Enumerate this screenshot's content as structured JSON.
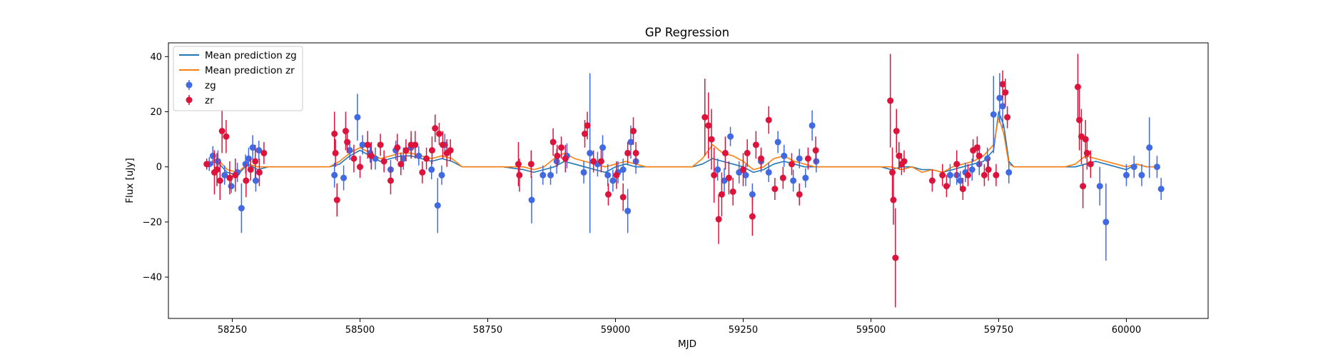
{
  "chart_data": {
    "type": "scatter",
    "title": "GP Regression",
    "xlabel": "MJD",
    "ylabel": "Flux [uJy]",
    "xlim": [
      58125,
      60160
    ],
    "ylim": [
      -55,
      45
    ],
    "xticks": [
      58250,
      58500,
      58750,
      59000,
      59250,
      59500,
      59750,
      60000
    ],
    "yticks": [
      -40,
      -20,
      0,
      20,
      40
    ],
    "grid": false,
    "legend_position": "top-left",
    "colors": {
      "zg_points": "#4169e1",
      "zr_points": "#dc143c",
      "zg_line": "#1f77b4",
      "zr_line": "#ff7f0e"
    },
    "legend": [
      {
        "label": "Mean prediction zg",
        "kind": "line",
        "color": "#1f77b4"
      },
      {
        "label": "Mean prediction zr",
        "kind": "line",
        "color": "#ff7f0e"
      },
      {
        "label": "zg",
        "kind": "errorbar",
        "color": "#4169e1"
      },
      {
        "label": "zr",
        "kind": "errorbar",
        "color": "#dc143c"
      }
    ],
    "series": [
      {
        "name": "Mean prediction zg",
        "kind": "line",
        "color": "#1f77b4",
        "x": [
          58200,
          58220,
          58240,
          58260,
          58280,
          58300,
          58320,
          58400,
          58440,
          58460,
          58480,
          58500,
          58520,
          58540,
          58560,
          58580,
          58600,
          58620,
          58640,
          58660,
          58680,
          58700,
          58780,
          58820,
          58840,
          58860,
          58880,
          58900,
          58920,
          58940,
          58960,
          58980,
          59000,
          59020,
          59040,
          59060,
          59150,
          59170,
          59190,
          59210,
          59230,
          59250,
          59270,
          59290,
          59310,
          59330,
          59350,
          59370,
          59390,
          59410,
          59500,
          59520,
          59540,
          59560,
          59580,
          59600,
          59620,
          59640,
          59660,
          59680,
          59700,
          59720,
          59740,
          59750,
          59760,
          59770,
          59780,
          59800,
          59880,
          59900,
          59920,
          59940,
          59960,
          59980,
          60000,
          60020,
          60040,
          60060
        ],
        "y": [
          1,
          2,
          -2,
          -3,
          1,
          -1,
          0,
          0,
          0,
          1,
          4,
          6,
          4,
          2,
          3,
          4,
          4,
          3,
          2,
          3,
          2,
          0,
          0,
          -1,
          -2,
          -1,
          0,
          2,
          1,
          0,
          -1,
          -2,
          0,
          1,
          0,
          0,
          0,
          1,
          3,
          2,
          1,
          0,
          -2,
          -1,
          1,
          2,
          1,
          0,
          0,
          0,
          0,
          0,
          -1,
          0,
          0,
          -1,
          -1,
          -2,
          -1,
          0,
          1,
          2,
          6,
          20,
          15,
          2,
          0,
          0,
          0,
          0,
          1,
          2,
          1,
          0,
          -1,
          1,
          0,
          0
        ]
      },
      {
        "name": "Mean prediction zr",
        "kind": "line",
        "color": "#ff7f0e",
        "x": [
          58200,
          58220,
          58240,
          58260,
          58280,
          58300,
          58320,
          58400,
          58440,
          58460,
          58480,
          58500,
          58520,
          58540,
          58560,
          58580,
          58600,
          58620,
          58640,
          58660,
          58680,
          58700,
          58780,
          58820,
          58840,
          58860,
          58880,
          58900,
          58920,
          58940,
          58960,
          58980,
          59000,
          59020,
          59040,
          59060,
          59150,
          59170,
          59190,
          59210,
          59230,
          59250,
          59270,
          59290,
          59310,
          59330,
          59350,
          59370,
          59390,
          59410,
          59500,
          59520,
          59540,
          59560,
          59580,
          59600,
          59620,
          59640,
          59660,
          59680,
          59700,
          59720,
          59740,
          59750,
          59760,
          59770,
          59780,
          59800,
          59880,
          59900,
          59920,
          59940,
          59960,
          59980,
          60000,
          60020,
          60040,
          60060
        ],
        "y": [
          1,
          3,
          -1,
          -2,
          1,
          0,
          0,
          0,
          0,
          2,
          5,
          7,
          5,
          3,
          4,
          5,
          5,
          4,
          3,
          4,
          3,
          0,
          0,
          0,
          -1,
          0,
          3,
          5,
          3,
          2,
          1,
          0,
          1,
          2,
          1,
          0,
          0,
          3,
          8,
          5,
          4,
          2,
          -1,
          0,
          3,
          4,
          2,
          1,
          0,
          0,
          0,
          0,
          0,
          -1,
          0,
          -2,
          -1,
          -2,
          0,
          1,
          2,
          4,
          8,
          18,
          12,
          1,
          0,
          0,
          0,
          1,
          4,
          3,
          2,
          1,
          0,
          1,
          0,
          0
        ]
      },
      {
        "name": "zg",
        "kind": "errorbar",
        "color": "#4169e1",
        "x": [
          58205,
          58212,
          58222,
          58235,
          58248,
          58260,
          58268,
          58276,
          58282,
          58290,
          58296,
          58302,
          58450,
          58468,
          58480,
          58495,
          58505,
          58520,
          58530,
          58560,
          58570,
          58585,
          58600,
          58615,
          58640,
          58652,
          58660,
          58666,
          58836,
          58858,
          58873,
          58885,
          58905,
          58938,
          58950,
          58965,
          58975,
          58985,
          58995,
          59005,
          59015,
          59024,
          59030,
          59040,
          59200,
          59213,
          59225,
          59242,
          59255,
          59268,
          59285,
          59300,
          59318,
          59330,
          59348,
          59360,
          59372,
          59385,
          59393,
          59655,
          59668,
          59675,
          59685,
          59698,
          59712,
          59728,
          59740,
          59752,
          59758,
          59770,
          59948,
          59960,
          60000,
          60015,
          60030,
          60045,
          60060,
          60068
        ],
        "y": [
          1,
          4,
          2,
          -3,
          -7,
          -2,
          -15,
          1,
          3,
          7,
          -5,
          6,
          -3,
          -4,
          6,
          18,
          8,
          5,
          3,
          -1,
          6,
          3,
          7,
          4,
          -1,
          -14,
          -3,
          8,
          -12,
          -3,
          -3,
          2,
          4,
          -2,
          5,
          1,
          7,
          -3,
          -5,
          -2,
          -1,
          -16,
          9,
          2,
          -1,
          -5,
          11,
          -2,
          -3,
          -10,
          2,
          -2,
          9,
          4,
          -5,
          3,
          -4,
          15,
          2,
          -3,
          -3,
          -5,
          -2,
          -1,
          1,
          3,
          19,
          25,
          22,
          -2,
          -7,
          -20,
          -3,
          0,
          -3,
          7,
          0,
          -8
        ],
        "err": [
          2.5,
          3.5,
          4,
          3.5,
          2.5,
          3.5,
          9,
          3.5,
          4,
          4.5,
          4,
          3.5,
          4.5,
          4.5,
          3.5,
          8.5,
          3.5,
          3.5,
          4,
          3.5,
          3.5,
          4,
          3.5,
          3.5,
          3.5,
          10,
          3.5,
          4,
          8.5,
          3.5,
          3.5,
          4.5,
          4.5,
          4,
          29,
          4.5,
          4.5,
          4,
          4,
          4,
          4,
          8,
          6,
          4.5,
          4,
          4.5,
          3.5,
          4,
          4,
          4,
          4,
          3.5,
          4,
          4,
          4,
          3.5,
          3.5,
          5.5,
          4,
          4,
          3.5,
          3.5,
          3.5,
          4,
          4,
          4,
          14,
          9,
          8,
          4,
          7,
          14,
          4,
          4,
          4,
          11,
          4,
          4
        ]
      },
      {
        "name": "zr",
        "kind": "errorbar",
        "color": "#dc143c",
        "x": [
          58200,
          58215,
          58220,
          58226,
          58230,
          58238,
          58245,
          58256,
          58277,
          58286,
          58295,
          58303,
          58312,
          58450,
          58452,
          58455,
          58472,
          58475,
          58488,
          58500,
          58515,
          58522,
          58540,
          58547,
          58560,
          58573,
          58580,
          58590,
          58600,
          58608,
          58622,
          58630,
          58641,
          58647,
          58655,
          58662,
          58670,
          58677,
          58810,
          58812,
          58835,
          58878,
          58886,
          58894,
          58902,
          58940,
          58945,
          58957,
          58972,
          58986,
          59002,
          59015,
          59024,
          59035,
          59040,
          59175,
          59182,
          59188,
          59193,
          59202,
          59208,
          59215,
          59222,
          59230,
          59250,
          59258,
          59268,
          59275,
          59285,
          59300,
          59312,
          59328,
          59345,
          59360,
          59377,
          59392,
          59538,
          59542,
          59544,
          59548,
          59550,
          59555,
          59560,
          59565,
          59620,
          59640,
          59648,
          59668,
          59680,
          59690,
          59700,
          59708,
          59712,
          59722,
          59730,
          59745,
          59758,
          59763,
          59767,
          59905,
          59908,
          59912,
          59915,
          59920,
          59923,
          59930
        ],
        "y": [
          1,
          -2,
          -1,
          -5,
          13,
          11,
          -4,
          -3,
          -5,
          -1,
          2,
          -2,
          5,
          12,
          5,
          -12,
          13,
          9,
          3,
          0,
          8,
          4,
          8,
          2,
          -5,
          7,
          1,
          6,
          8,
          8,
          -2,
          3,
          6,
          14,
          12,
          8,
          5,
          6,
          1,
          -3,
          1,
          9,
          4,
          7,
          3,
          12,
          15,
          2,
          2,
          -10,
          -3,
          -11,
          5,
          13,
          5,
          18,
          15,
          10,
          -3,
          -19,
          -10,
          5,
          -4,
          -9,
          -1,
          5,
          -18,
          8,
          3,
          17,
          -8,
          -4,
          1,
          -10,
          3,
          6,
          24,
          -2,
          -12,
          -33,
          13,
          4,
          1,
          2,
          -5,
          -3,
          -7,
          1,
          -8,
          -3,
          6,
          7,
          4,
          -3,
          -1,
          -3,
          30,
          27,
          18,
          29,
          17,
          11,
          -7,
          10,
          5,
          1
        ],
        "err": [
          2,
          8,
          6,
          7,
          8,
          6,
          6,
          6,
          6,
          4,
          6,
          5,
          4,
          8,
          5,
          6,
          7,
          4,
          5,
          4,
          5,
          5,
          4,
          4,
          5,
          5,
          4,
          4,
          5,
          5,
          4,
          4,
          5,
          5,
          4,
          5,
          5,
          4,
          8,
          6,
          5,
          5,
          4,
          4,
          5,
          5,
          5,
          4,
          4,
          4,
          5,
          5,
          4,
          5,
          4,
          14,
          12,
          11,
          10,
          9,
          8,
          6,
          6,
          5,
          6,
          5,
          7,
          5,
          4,
          5,
          4,
          4,
          4,
          4,
          4,
          5,
          17,
          9,
          9,
          18,
          8,
          5,
          4,
          4,
          4,
          4,
          4,
          5,
          4,
          4,
          4,
          4,
          4,
          4,
          4,
          4,
          5,
          5,
          4,
          12,
          11,
          10,
          8,
          7,
          6,
          5
        ]
      }
    ]
  }
}
